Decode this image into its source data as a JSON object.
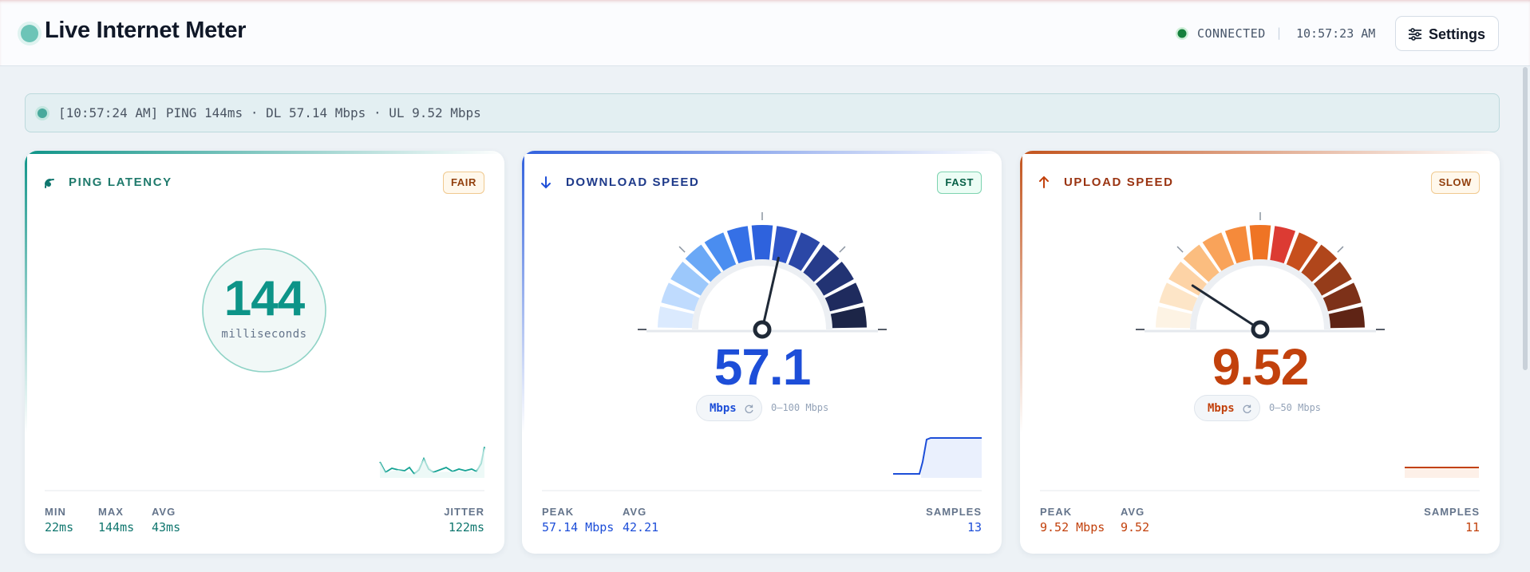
{
  "header": {
    "title": "Live Internet Meter",
    "status": "CONNECTED",
    "separator": "|",
    "time": "10:57:23 AM",
    "settings": "Settings"
  },
  "ticker": {
    "text": "[10:57:24 AM] PING 144ms · DL 57.14 Mbps · UL 9.52 Mbps"
  },
  "cards": [
    {
      "label": "PING LATENCY",
      "badge": "FAIR",
      "value": "144",
      "unit": "milliseconds",
      "stats": [
        {
          "label": "MIN",
          "value": "22ms"
        },
        {
          "label": "MAX",
          "value": "144ms"
        },
        {
          "label": "AVG",
          "value": "43ms"
        },
        {
          "label": "JITTER",
          "value": "122ms"
        }
      ]
    },
    {
      "label": "DOWNLOAD SPEED",
      "badge": "FAST",
      "value": "57.1",
      "unit": "Mbps",
      "range": "0–100 Mbps",
      "stats": [
        {
          "label": "PEAK",
          "value": "57.14 Mbps"
        },
        {
          "label": "AVG",
          "value": "42.21"
        },
        {
          "label": "SAMPLES",
          "value": "13"
        }
      ]
    },
    {
      "label": "UPLOAD SPEED",
      "badge": "SLOW",
      "value": "9.52",
      "unit": "Mbps",
      "range": "0–50 Mbps",
      "stats": [
        {
          "label": "PEAK",
          "value": "9.52 Mbps"
        },
        {
          "label": "AVG",
          "value": "9.52"
        },
        {
          "label": "SAMPLES",
          "value": "11"
        }
      ]
    }
  ]
}
